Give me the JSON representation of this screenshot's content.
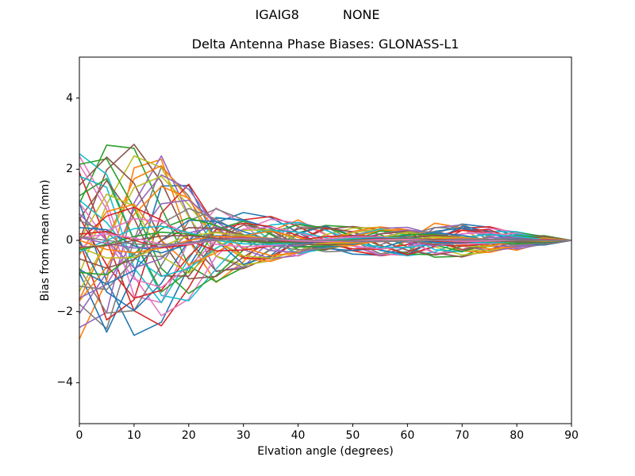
{
  "header": {
    "left": "IGAIG8",
    "right": "NONE"
  },
  "chart_data": {
    "type": "line",
    "title": "Delta Antenna Phase Biases: GLONASS-L1",
    "xlabel": "Elvation angle (degrees)",
    "ylabel": "Bias from mean (mm)",
    "xlim": [
      0,
      90
    ],
    "ylim": [
      -5.15,
      5.15
    ],
    "xticks": [
      0,
      10,
      20,
      30,
      40,
      50,
      60,
      70,
      80,
      90
    ],
    "xtick_labels": [
      "0",
      "10",
      "20",
      "30",
      "40",
      "50",
      "60",
      "70",
      "80",
      "90"
    ],
    "yticks": [
      -4,
      -2,
      0,
      2,
      4
    ],
    "ytick_labels": [
      "−4",
      "−2",
      "0",
      "2",
      "4"
    ],
    "grid": false,
    "legend": false,
    "x": [
      0,
      5,
      10,
      15,
      20,
      25,
      30,
      35,
      40,
      45,
      50,
      55,
      60,
      65,
      70,
      75,
      80,
      85,
      90
    ],
    "amplitude_envelope": [
      2.8,
      3.0,
      2.9,
      2.5,
      1.95,
      1.3,
      0.85,
      0.7,
      0.58,
      0.47,
      0.42,
      0.45,
      0.5,
      0.53,
      0.5,
      0.4,
      0.28,
      0.15,
      0.0
    ],
    "phase_table": [
      1.0,
      0.92,
      0.71,
      0.38,
      0.0,
      -0.38,
      -0.71,
      -0.92,
      -1.0,
      -0.92,
      -0.71,
      -0.38,
      0.0,
      0.38,
      0.71,
      0.92
    ],
    "series_model": "value[j] = scale * amplitude_envelope[j] * phase_table[(phase + step*j) mod 16]",
    "palette": [
      "#1f77b4",
      "#ff7f0e",
      "#2ca02c",
      "#d62728",
      "#9467bd",
      "#8c564b",
      "#e377c2",
      "#7f7f7f",
      "#bcbd22",
      "#17becf"
    ],
    "series": [
      {
        "phase": 3,
        "scale": 1.0,
        "step": 2
      },
      {
        "phase": 8,
        "scale": 0.99,
        "step": 3
      },
      {
        "phase": 13,
        "scale": 0.97,
        "step": 2
      },
      {
        "phase": 2,
        "scale": 0.96,
        "step": 2
      },
      {
        "phase": 7,
        "scale": 0.95,
        "step": 3
      },
      {
        "phase": 12,
        "scale": 0.93,
        "step": 2
      },
      {
        "phase": 1,
        "scale": 0.92,
        "step": 2
      },
      {
        "phase": 6,
        "scale": 0.9,
        "step": 3
      },
      {
        "phase": 11,
        "scale": 0.89,
        "step": 2
      },
      {
        "phase": 0,
        "scale": 0.87,
        "step": 2
      },
      {
        "phase": 5,
        "scale": 0.86,
        "step": 3
      },
      {
        "phase": 10,
        "scale": 0.84,
        "step": 2
      },
      {
        "phase": 15,
        "scale": 0.83,
        "step": 2
      },
      {
        "phase": 4,
        "scale": 0.81,
        "step": 3
      },
      {
        "phase": 9,
        "scale": 0.8,
        "step": 2
      },
      {
        "phase": 14,
        "scale": 0.78,
        "step": 2
      },
      {
        "phase": 0,
        "scale": 0.76,
        "step": 3
      },
      {
        "phase": 5,
        "scale": 0.74,
        "step": 2
      },
      {
        "phase": 10,
        "scale": 0.72,
        "step": 2
      },
      {
        "phase": 15,
        "scale": 0.7,
        "step": 3
      },
      {
        "phase": 4,
        "scale": 0.68,
        "step": 2
      },
      {
        "phase": 9,
        "scale": 0.66,
        "step": 2
      },
      {
        "phase": 14,
        "scale": 0.63,
        "step": 3
      },
      {
        "phase": 3,
        "scale": 0.61,
        "step": 2
      },
      {
        "phase": 8,
        "scale": 0.58,
        "step": 2
      },
      {
        "phase": 13,
        "scale": 0.56,
        "step": 3
      },
      {
        "phase": 2,
        "scale": 0.53,
        "step": 2
      },
      {
        "phase": 7,
        "scale": 0.5,
        "step": 2
      },
      {
        "phase": 12,
        "scale": 0.47,
        "step": 3
      },
      {
        "phase": 1,
        "scale": 0.44,
        "step": 2
      },
      {
        "phase": 6,
        "scale": 0.41,
        "step": 2
      },
      {
        "phase": 11,
        "scale": 0.38,
        "step": 3
      },
      {
        "phase": 7,
        "scale": 0.35,
        "step": 2
      },
      {
        "phase": 12,
        "scale": 0.32,
        "step": 2
      },
      {
        "phase": 1,
        "scale": 0.29,
        "step": 3
      },
      {
        "phase": 6,
        "scale": 0.26,
        "step": 2
      },
      {
        "phase": 11,
        "scale": 0.23,
        "step": 2
      },
      {
        "phase": 0,
        "scale": 0.2,
        "step": 3
      },
      {
        "phase": 5,
        "scale": 0.18,
        "step": 2
      },
      {
        "phase": 10,
        "scale": 0.16,
        "step": 2
      },
      {
        "phase": 15,
        "scale": 0.14,
        "step": 3
      },
      {
        "phase": 4,
        "scale": 0.12,
        "step": 2
      },
      {
        "phase": 9,
        "scale": 0.1,
        "step": 2
      },
      {
        "phase": 14,
        "scale": 0.09,
        "step": 3
      },
      {
        "phase": 3,
        "scale": 0.08,
        "step": 2
      },
      {
        "phase": 8,
        "scale": 0.07,
        "step": 2
      },
      {
        "phase": 13,
        "scale": 0.06,
        "step": 3
      },
      {
        "phase": 2,
        "scale": 0.05,
        "step": 2
      }
    ]
  }
}
